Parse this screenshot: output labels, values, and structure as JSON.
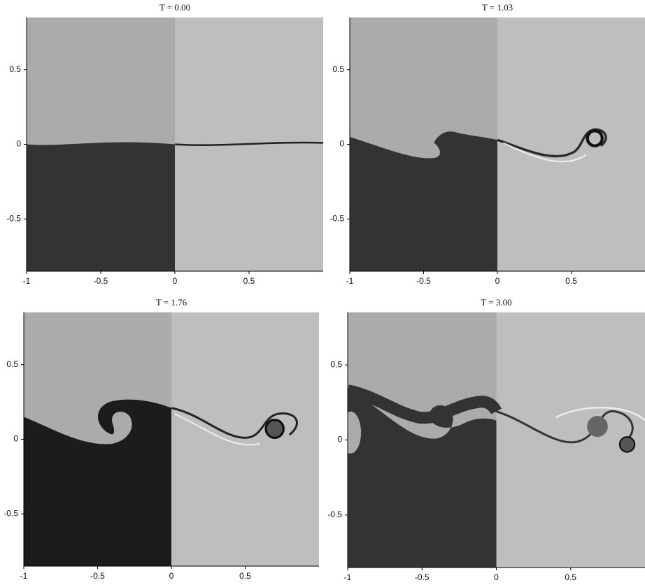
{
  "xlim": [
    -1,
    1
  ],
  "ylim": [
    -0.85,
    0.85
  ],
  "panels": [
    {
      "title": "T = 0.00",
      "xticks": [
        -1,
        -0.5,
        0,
        0.5
      ],
      "yticks": [
        -0.5,
        0,
        0.5
      ]
    },
    {
      "title": "T = 1.03",
      "xticks": [
        -1,
        -0.5,
        0,
        0.5
      ],
      "yticks": [
        -0.5,
        0,
        0.5
      ]
    },
    {
      "title": "T = 1.76",
      "xticks": [
        -1,
        -0.5,
        0,
        0.5
      ],
      "yticks": [
        -0.5,
        0,
        0.5
      ]
    },
    {
      "title": "T = 3.00",
      "xticks": [
        -1,
        -0.5,
        0,
        0.5
      ],
      "yticks": [
        -0.5,
        0,
        0.5
      ]
    }
  ]
}
